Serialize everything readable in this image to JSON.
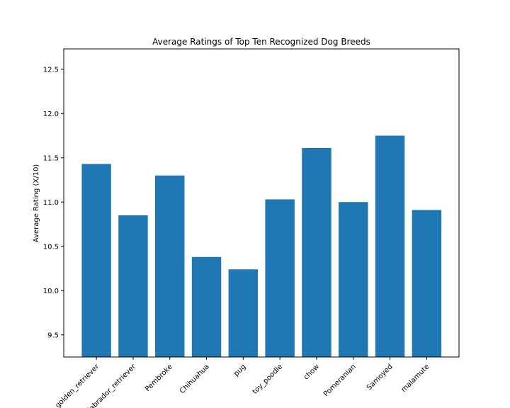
{
  "chart_data": {
    "type": "bar",
    "title": "Average Ratings of Top Ten Recognized Dog Breeds",
    "xlabel": "",
    "ylabel": "Average Rating (X/10)",
    "categories": [
      "golden_retriever",
      "labrador_retriever",
      "Pembroke",
      "Chihuahua",
      "pug",
      "toy_poodle",
      "chow",
      "Pomeranian",
      "Samoyed",
      "malamute"
    ],
    "values": [
      11.43,
      10.85,
      11.3,
      10.38,
      10.24,
      11.03,
      11.61,
      11.0,
      11.75,
      10.91
    ],
    "ylim": [
      9.25,
      12.73
    ],
    "yticks": [
      9.5,
      10.0,
      10.5,
      11.0,
      11.5,
      12.0,
      12.5
    ],
    "ytick_labels": [
      "9.5",
      "10.0",
      "10.5",
      "11.0",
      "11.5",
      "12.0",
      "12.5"
    ],
    "bar_color": "#1f77b4",
    "grid": false,
    "legend": "none"
  }
}
